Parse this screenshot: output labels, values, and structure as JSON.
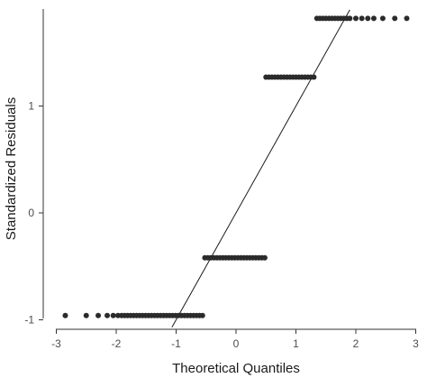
{
  "chart_data": {
    "type": "scatter",
    "title": "",
    "xlabel": "Theoretical Quantiles",
    "ylabel": "Standardized Residuals",
    "xlim": [
      -3.0,
      3.0
    ],
    "ylim": [
      -1.0,
      2.0
    ],
    "x_ticks": [
      -3,
      -2,
      -1,
      0,
      1,
      2,
      3
    ],
    "y_ticks": [
      -1,
      0,
      1
    ],
    "grid": false,
    "reference_line": {
      "intercept": 0.0,
      "slope": 1.0
    },
    "groups": [
      {
        "y": -0.96,
        "x_from": -2.85,
        "x_to": -0.55,
        "tail_left": [
          -2.85,
          -2.5,
          -2.3,
          -2.15,
          -2.05,
          -1.97
        ]
      },
      {
        "y": -0.42,
        "x_from": -0.52,
        "x_to": 0.48,
        "tail_left": []
      },
      {
        "y": 1.27,
        "x_from": 0.5,
        "x_to": 1.33,
        "tail_left": []
      },
      {
        "y": 1.82,
        "x_from": 1.35,
        "x_to": 2.85,
        "tail_right": [
          2.0,
          2.1,
          2.2,
          2.3,
          2.45,
          2.65,
          2.85
        ]
      }
    ]
  }
}
